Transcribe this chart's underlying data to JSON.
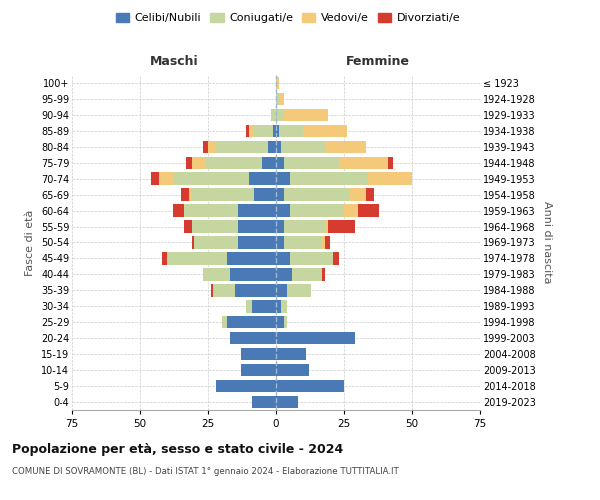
{
  "age_groups": [
    "0-4",
    "5-9",
    "10-14",
    "15-19",
    "20-24",
    "25-29",
    "30-34",
    "35-39",
    "40-44",
    "45-49",
    "50-54",
    "55-59",
    "60-64",
    "65-69",
    "70-74",
    "75-79",
    "80-84",
    "85-89",
    "90-94",
    "95-99",
    "100+"
  ],
  "birth_years": [
    "2019-2023",
    "2014-2018",
    "2009-2013",
    "2004-2008",
    "1999-2003",
    "1994-1998",
    "1989-1993",
    "1984-1988",
    "1979-1983",
    "1974-1978",
    "1969-1973",
    "1964-1968",
    "1959-1963",
    "1954-1958",
    "1949-1953",
    "1944-1948",
    "1939-1943",
    "1934-1938",
    "1929-1933",
    "1924-1928",
    "≤ 1923"
  ],
  "colors": {
    "celibi": "#4a7ab5",
    "coniugati": "#c5d6a0",
    "vedovi": "#f5c97a",
    "divorziati": "#d63b2f"
  },
  "maschi": {
    "celibi": [
      9,
      22,
      13,
      13,
      17,
      18,
      9,
      15,
      17,
      18,
      14,
      14,
      14,
      8,
      10,
      5,
      3,
      1,
      0,
      0,
      0
    ],
    "coniugati": [
      0,
      0,
      0,
      0,
      0,
      2,
      2,
      8,
      10,
      22,
      16,
      17,
      20,
      23,
      28,
      21,
      19,
      7,
      2,
      0,
      0
    ],
    "vedovi": [
      0,
      0,
      0,
      0,
      0,
      0,
      0,
      0,
      0,
      0,
      0,
      0,
      0,
      1,
      5,
      5,
      3,
      2,
      0,
      0,
      0
    ],
    "divorziati": [
      0,
      0,
      0,
      0,
      0,
      0,
      0,
      1,
      0,
      2,
      1,
      3,
      4,
      3,
      3,
      2,
      2,
      1,
      0,
      0,
      0
    ]
  },
  "femmine": {
    "celibi": [
      8,
      25,
      12,
      11,
      29,
      3,
      2,
      4,
      6,
      5,
      3,
      3,
      5,
      3,
      5,
      3,
      2,
      1,
      0,
      0,
      0
    ],
    "coniugati": [
      0,
      0,
      0,
      0,
      0,
      1,
      2,
      9,
      11,
      16,
      14,
      15,
      20,
      24,
      29,
      20,
      16,
      9,
      3,
      1,
      0
    ],
    "vedovi": [
      0,
      0,
      0,
      0,
      0,
      0,
      0,
      0,
      0,
      0,
      1,
      1,
      5,
      6,
      16,
      18,
      15,
      16,
      16,
      2,
      1
    ],
    "divorziati": [
      0,
      0,
      0,
      0,
      0,
      0,
      0,
      0,
      1,
      2,
      2,
      10,
      8,
      3,
      0,
      2,
      0,
      0,
      0,
      0,
      0
    ]
  },
  "xlim": 75,
  "title": "Popolazione per età, sesso e stato civile - 2024",
  "subtitle": "COMUNE DI SOVRAMONTE (BL) - Dati ISTAT 1° gennaio 2024 - Elaborazione TUTTITALIA.IT",
  "ylabel_left": "Fasce di età",
  "ylabel_right": "Anni di nascita",
  "xlabel_left": "Maschi",
  "xlabel_right": "Femmine",
  "legend_labels": [
    "Celibi/Nubili",
    "Coniugati/e",
    "Vedovi/e",
    "Divorziati/e"
  ]
}
